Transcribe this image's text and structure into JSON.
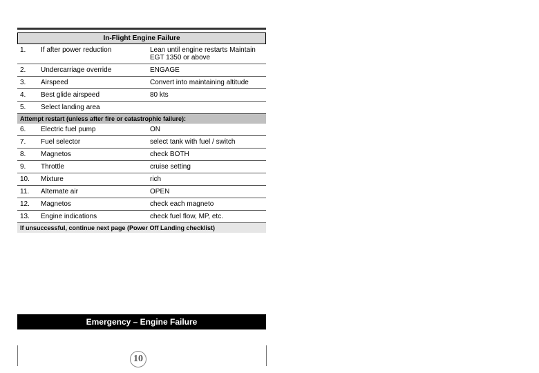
{
  "title": "In-Flight Engine Failure",
  "rows1": [
    {
      "n": "1.",
      "item": "If after power reduction",
      "action": "Lean until engine restarts Maintain EGT 1350 or above"
    },
    {
      "n": "2.",
      "item": "Undercarriage override",
      "action": "ENGAGE"
    },
    {
      "n": "3.",
      "item": "Airspeed",
      "action": "Convert into maintaining altitude"
    },
    {
      "n": "4.",
      "item": "Best glide airspeed",
      "action": "80 kts"
    },
    {
      "n": "5.",
      "item": "Select landing area",
      "action": ""
    }
  ],
  "subhead": "Attempt restart (unless after fire or catastrophic failure):",
  "rows2": [
    {
      "n": "6.",
      "item": "Electric fuel pump",
      "action": "ON"
    },
    {
      "n": "7.",
      "item": "Fuel selector",
      "action": "select tank with fuel / switch"
    },
    {
      "n": "8.",
      "item": "Magnetos",
      "action": "check BOTH"
    },
    {
      "n": "9.",
      "item": "Throttle",
      "action": "cruise setting"
    },
    {
      "n": "10.",
      "item": "Mixture",
      "action": "rich"
    },
    {
      "n": "11.",
      "item": "Alternate air",
      "action": "OPEN"
    },
    {
      "n": "12.",
      "item": "Magnetos",
      "action": "check each magneto"
    },
    {
      "n": "13.",
      "item": "Engine indications",
      "action": "check fuel flow, MP, etc."
    }
  ],
  "note": "If unsuccessful, continue next page (Power Off Landing checklist)",
  "footer": "Emergency – Engine Failure",
  "page_number": "10"
}
